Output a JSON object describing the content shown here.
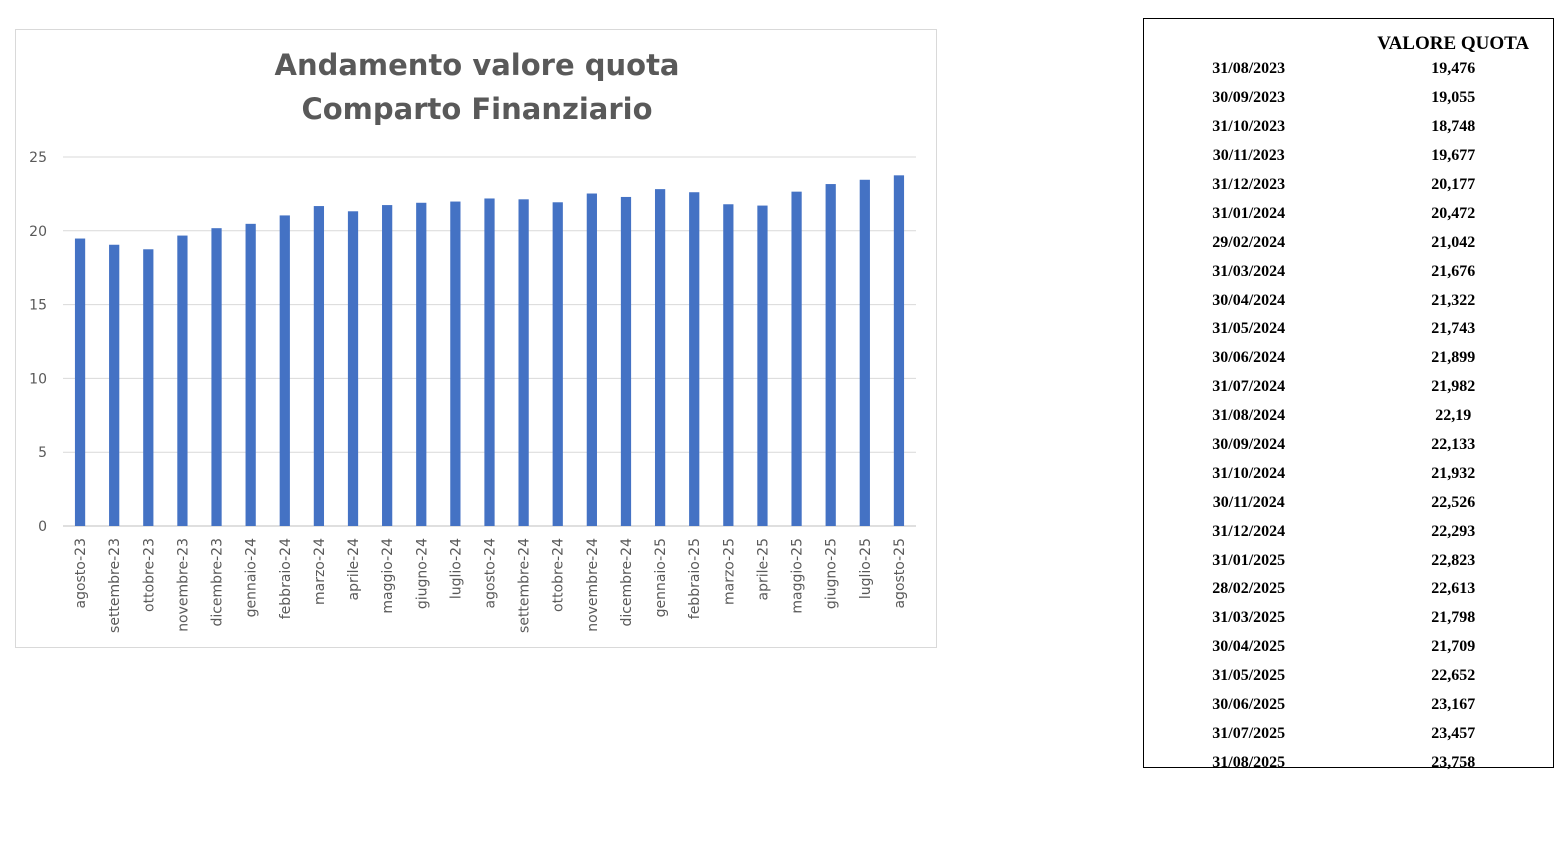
{
  "chart_data": {
    "type": "bar",
    "title": [
      "Andamento valore quota",
      "Comparto Finanziario"
    ],
    "categories": [
      "agosto-23",
      "settembre-23",
      "ottobre-23",
      "novembre-23",
      "dicembre-23",
      "gennaio-24",
      "febbraio-24",
      "marzo-24",
      "aprile-24",
      "maggio-24",
      "giugno-24",
      "luglio-24",
      "agosto-24",
      "settembre-24",
      "ottobre-24",
      "novembre-24",
      "dicembre-24",
      "gennaio-25",
      "febbraio-25",
      "marzo-25",
      "aprile-25",
      "maggio-25",
      "giugno-25",
      "luglio-25",
      "agosto-25"
    ],
    "values": [
      19.476,
      19.055,
      18.748,
      19.677,
      20.177,
      20.472,
      21.042,
      21.676,
      21.322,
      21.743,
      21.899,
      21.982,
      22.19,
      22.133,
      21.932,
      22.526,
      22.293,
      22.823,
      22.613,
      21.798,
      21.709,
      22.652,
      23.167,
      23.457,
      23.758
    ],
    "ylim": [
      0,
      25
    ],
    "yticks": [
      0,
      5,
      10,
      15,
      20,
      25
    ],
    "grid": true,
    "legend": "none",
    "bar_color": "#4472C4"
  },
  "table": {
    "header": "VALORE QUOTA",
    "rows": [
      {
        "date": "31/08/2023",
        "value": "19,476"
      },
      {
        "date": "30/09/2023",
        "value": "19,055"
      },
      {
        "date": "31/10/2023",
        "value": "18,748"
      },
      {
        "date": "30/11/2023",
        "value": "19,677"
      },
      {
        "date": "31/12/2023",
        "value": "20,177"
      },
      {
        "date": "31/01/2024",
        "value": "20,472"
      },
      {
        "date": "29/02/2024",
        "value": "21,042"
      },
      {
        "date": "31/03/2024",
        "value": "21,676"
      },
      {
        "date": "30/04/2024",
        "value": "21,322"
      },
      {
        "date": "31/05/2024",
        "value": "21,743"
      },
      {
        "date": "30/06/2024",
        "value": "21,899"
      },
      {
        "date": "31/07/2024",
        "value": "21,982"
      },
      {
        "date": "31/08/2024",
        "value": "22,19"
      },
      {
        "date": "30/09/2024",
        "value": "22,133"
      },
      {
        "date": "31/10/2024",
        "value": "21,932"
      },
      {
        "date": "30/11/2024",
        "value": "22,526"
      },
      {
        "date": "31/12/2024",
        "value": "22,293"
      },
      {
        "date": "31/01/2025",
        "value": "22,823"
      },
      {
        "date": "28/02/2025",
        "value": "22,613"
      },
      {
        "date": "31/03/2025",
        "value": "21,798"
      },
      {
        "date": "30/04/2025",
        "value": "21,709"
      },
      {
        "date": "31/05/2025",
        "value": "22,652"
      },
      {
        "date": "30/06/2025",
        "value": "23,167"
      },
      {
        "date": "31/07/2025",
        "value": "23,457"
      },
      {
        "date": "31/08/2025",
        "value": "23,758"
      }
    ]
  }
}
